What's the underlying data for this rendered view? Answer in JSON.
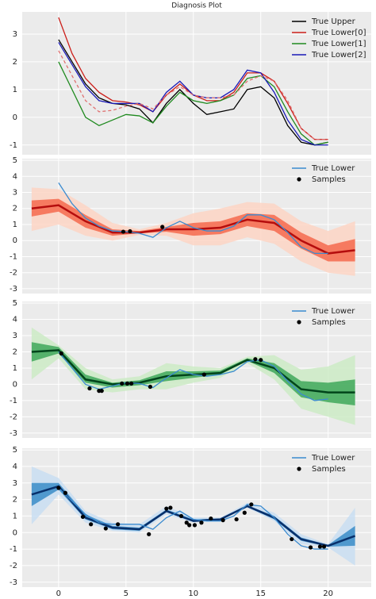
{
  "chart_data": [
    {
      "type": "line",
      "title": "Diagnosis Plot",
      "legend": "upper right",
      "grid": true,
      "x": [
        0,
        1,
        2,
        3,
        4,
        5,
        6,
        7,
        8,
        9,
        10,
        11,
        12,
        13,
        14,
        15,
        16,
        17,
        18,
        19,
        20
      ],
      "series": [
        {
          "name": "True Upper",
          "color": "#000000",
          "values": [
            2.8,
            2.0,
            1.2,
            0.7,
            0.5,
            0.45,
            0.3,
            -0.2,
            0.5,
            1.0,
            0.5,
            0.1,
            0.2,
            0.3,
            1.0,
            1.1,
            0.7,
            -0.3,
            -0.9,
            -1.0,
            -0.9
          ]
        },
        {
          "name": "True Lower[0]",
          "color": "#cc1f1a",
          "values": [
            3.6,
            2.3,
            1.4,
            0.9,
            0.6,
            0.55,
            0.45,
            0.2,
            0.8,
            1.2,
            0.8,
            0.6,
            0.6,
            0.9,
            1.6,
            1.6,
            1.3,
            0.5,
            -0.4,
            -0.8,
            -0.8
          ]
        },
        {
          "name": "True Lower[1]",
          "color": "#1f8a1f",
          "values": [
            2.0,
            1.0,
            0.0,
            -0.3,
            -0.1,
            0.1,
            0.05,
            -0.2,
            0.4,
            0.9,
            0.6,
            0.5,
            0.6,
            0.8,
            1.4,
            1.5,
            1.1,
            0.2,
            -0.6,
            -1.0,
            -0.9
          ]
        },
        {
          "name": "True Lower[2]",
          "color": "#1a1ab8",
          "values": [
            2.7,
            1.9,
            1.1,
            0.6,
            0.5,
            0.5,
            0.5,
            0.2,
            0.9,
            1.3,
            0.8,
            0.7,
            0.7,
            1.0,
            1.7,
            1.6,
            0.9,
            -0.1,
            -0.8,
            -1.0,
            -1.0
          ]
        },
        {
          "color": "#e07070",
          "dash": true,
          "values": [
            2.4,
            1.5,
            0.6,
            0.2,
            0.25,
            0.4,
            0.5,
            0.3,
            0.8,
            1.1,
            0.8,
            0.7,
            0.7,
            0.8,
            1.3,
            1.5,
            1.3,
            0.6,
            -0.4,
            -0.8,
            -0.8
          ]
        }
      ],
      "xlim": [
        -2.7,
        23.2
      ],
      "ylim": [
        -1.35,
        3.8
      ],
      "yticks": [
        -1,
        0,
        1,
        2,
        3
      ],
      "xticks": [
        0,
        5,
        10,
        15,
        20
      ]
    },
    {
      "type": "band",
      "legend": "upper right",
      "grid": true,
      "x": [
        -2,
        0,
        2,
        4,
        6,
        8,
        10,
        12,
        14,
        16,
        18,
        20,
        22
      ],
      "bands": [
        {
          "color": "#fdd5c4",
          "lower": [
            0.6,
            1.0,
            0.3,
            0.0,
            0.35,
            0.3,
            -0.3,
            -0.3,
            0.2,
            -0.2,
            -1.3,
            -2.0,
            -2.2
          ],
          "upper": [
            3.3,
            3.2,
            2.2,
            1.1,
            0.7,
            1.1,
            1.7,
            2.0,
            2.4,
            2.3,
            1.2,
            0.6,
            1.2
          ]
        },
        {
          "color": "#f46a4e",
          "lower": [
            1.5,
            1.8,
            0.8,
            0.3,
            0.45,
            0.55,
            0.3,
            0.4,
            0.9,
            0.6,
            -0.5,
            -1.3,
            -1.3
          ],
          "upper": [
            2.5,
            2.6,
            1.6,
            0.7,
            0.6,
            0.85,
            1.1,
            1.2,
            1.7,
            1.6,
            0.5,
            -0.3,
            0.1
          ]
        }
      ],
      "mean": {
        "color": "#b50d0d",
        "values": [
          2.0,
          2.2,
          1.2,
          0.5,
          0.5,
          0.7,
          0.7,
          0.8,
          1.3,
          1.1,
          0.0,
          -0.8,
          -0.6
        ]
      },
      "true_line": {
        "name": "True Lower",
        "color": "#3b8bd0",
        "x": [
          0,
          1,
          2,
          3,
          4,
          5,
          6,
          7,
          8,
          9,
          10,
          11,
          12,
          13,
          14,
          15,
          16,
          17,
          18,
          19,
          20
        ],
        "values": [
          3.6,
          2.3,
          1.4,
          0.9,
          0.6,
          0.55,
          0.45,
          0.2,
          0.8,
          1.2,
          0.8,
          0.6,
          0.6,
          0.9,
          1.6,
          1.6,
          1.3,
          0.5,
          -0.4,
          -0.8,
          -0.8
        ]
      },
      "samples": {
        "name": "Samples",
        "color": "#000000",
        "x": [
          4.8,
          5.3,
          7.7
        ],
        "values": [
          0.55,
          0.58,
          0.85
        ]
      },
      "xlim": [
        -2.7,
        23.2
      ],
      "ylim": [
        -3.3,
        5.1
      ],
      "yticks": [
        -3,
        -2,
        -1,
        0,
        1,
        2,
        3,
        4,
        5
      ],
      "xticks": [
        0,
        5,
        10,
        15,
        20
      ]
    },
    {
      "type": "band",
      "legend": "upper right",
      "grid": true,
      "x": [
        -2,
        0,
        2,
        4,
        6,
        8,
        10,
        12,
        14,
        16,
        18,
        20,
        22
      ],
      "bands": [
        {
          "color": "#cdebc6",
          "lower": [
            0.3,
            1.6,
            -0.3,
            -0.5,
            -0.3,
            -0.3,
            0.1,
            0.4,
            1.3,
            0.3,
            -1.5,
            -2.0,
            -2.5
          ],
          "upper": [
            3.5,
            2.4,
            1.0,
            0.3,
            0.5,
            1.3,
            1.1,
            1.0,
            1.7,
            1.8,
            0.9,
            1.1,
            1.8
          ]
        },
        {
          "color": "#3fa85a",
          "lower": [
            1.4,
            1.9,
            0.1,
            -0.2,
            -0.05,
            0.2,
            0.4,
            0.6,
            1.45,
            0.7,
            -0.8,
            -1.1,
            -1.3
          ],
          "upper": [
            2.6,
            2.3,
            0.6,
            0.1,
            0.25,
            0.8,
            0.8,
            0.85,
            1.6,
            1.3,
            0.2,
            0.1,
            0.3
          ]
        }
      ],
      "mean": {
        "color": "#00441b",
        "values": [
          2.0,
          2.1,
          0.3,
          0.0,
          0.1,
          0.5,
          0.6,
          0.7,
          1.5,
          1.0,
          -0.3,
          -0.5,
          -0.5
        ]
      },
      "true_line": {
        "name": "True Lower",
        "color": "#3b8bd0",
        "x": [
          0,
          1,
          2,
          3,
          4,
          5,
          6,
          7,
          8,
          9,
          10,
          11,
          12,
          13,
          14,
          15,
          16,
          17,
          18,
          19,
          20
        ],
        "values": [
          2.0,
          1.0,
          0.0,
          -0.3,
          -0.1,
          0.1,
          0.05,
          -0.2,
          0.4,
          0.9,
          0.6,
          0.5,
          0.6,
          0.8,
          1.4,
          1.5,
          1.1,
          0.2,
          -0.6,
          -1.0,
          -0.9
        ]
      },
      "samples": {
        "name": "Samples",
        "color": "#000000",
        "x": [
          0.2,
          2.3,
          3.0,
          3.2,
          4.7,
          5.1,
          5.4,
          6.8,
          10.8,
          14.6,
          15.0
        ],
        "values": [
          1.9,
          -0.25,
          -0.4,
          -0.4,
          0.05,
          0.05,
          0.05,
          -0.15,
          0.6,
          1.55,
          1.5
        ]
      },
      "xlim": [
        -2.7,
        23.2
      ],
      "ylim": [
        -3.3,
        5.1
      ],
      "yticks": [
        -3,
        -2,
        -1,
        0,
        1,
        2,
        3,
        4,
        5
      ],
      "xticks": [
        0,
        5,
        10,
        15,
        20
      ]
    },
    {
      "type": "band",
      "legend": "upper right",
      "grid": true,
      "xtick_labels": true,
      "x": [
        -2,
        0,
        2,
        4,
        6,
        8,
        10,
        12,
        14,
        16,
        18,
        20,
        22
      ],
      "bands": [
        {
          "color": "#c9def2",
          "lower": [
            0.5,
            2.3,
            0.6,
            0.1,
            0.0,
            1.1,
            0.6,
            0.7,
            1.5,
            0.7,
            -0.7,
            -0.9,
            -2.0
          ],
          "upper": [
            4.0,
            3.3,
            1.3,
            0.6,
            0.5,
            1.6,
            0.9,
            0.9,
            1.8,
            1.2,
            -0.1,
            -0.7,
            1.5
          ]
        },
        {
          "color": "#3a8cc8",
          "lower": [
            1.6,
            2.6,
            0.8,
            0.2,
            0.1,
            1.25,
            0.65,
            0.75,
            1.55,
            0.8,
            -0.5,
            -0.85,
            -0.8
          ],
          "upper": [
            3.0,
            3.0,
            1.1,
            0.4,
            0.3,
            1.4,
            0.8,
            0.85,
            1.65,
            1.0,
            -0.3,
            -0.75,
            0.4
          ]
        }
      ],
      "mean": {
        "color": "#08306b",
        "values": [
          2.3,
          2.8,
          0.9,
          0.3,
          0.2,
          1.3,
          0.7,
          0.8,
          1.6,
          0.9,
          -0.4,
          -0.8,
          -0.2
        ]
      },
      "true_line": {
        "name": "True Lower",
        "color": "#3b8bd0",
        "x": [
          0,
          1,
          2,
          3,
          4,
          5,
          6,
          7,
          8,
          9,
          10,
          11,
          12,
          13,
          14,
          15,
          16,
          17,
          18,
          19,
          20
        ],
        "values": [
          2.7,
          1.9,
          1.1,
          0.6,
          0.5,
          0.5,
          0.5,
          0.2,
          0.9,
          1.3,
          0.8,
          0.7,
          0.7,
          1.0,
          1.7,
          1.6,
          0.9,
          -0.1,
          -0.8,
          -1.0,
          -1.0
        ]
      },
      "samples": {
        "name": "Samples",
        "color": "#000000",
        "x": [
          0,
          0.5,
          1.8,
          2.4,
          3.5,
          4.4,
          6.7,
          8.0,
          8.3,
          9.1,
          9.5,
          9.7,
          10.1,
          10.6,
          11.3,
          12.2,
          13.2,
          13.8,
          14.3,
          17.3,
          18.7,
          19.4,
          19.7
        ],
        "values": [
          2.7,
          2.4,
          0.95,
          0.5,
          0.25,
          0.5,
          -0.1,
          1.45,
          1.5,
          1.0,
          0.6,
          0.45,
          0.45,
          0.6,
          0.85,
          0.75,
          0.8,
          1.2,
          1.7,
          -0.4,
          -0.9,
          -0.85,
          -0.85
        ]
      },
      "xlim": [
        -2.7,
        23.2
      ],
      "ylim": [
        -3.3,
        5.1
      ],
      "yticks": [
        -3,
        -2,
        -1,
        0,
        1,
        2,
        3,
        4,
        5
      ],
      "xticks": [
        0,
        5,
        10,
        15,
        20
      ]
    }
  ]
}
